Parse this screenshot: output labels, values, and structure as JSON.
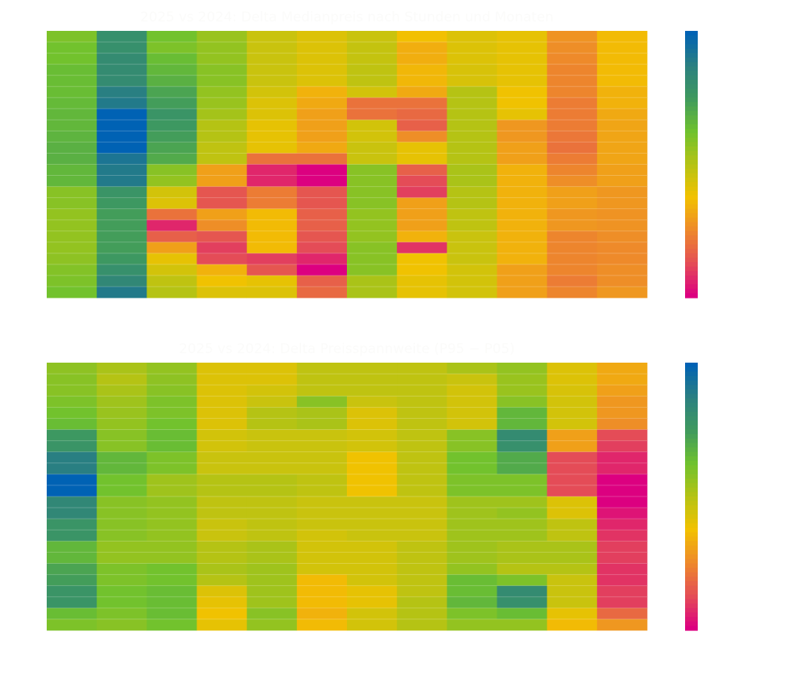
{
  "chart_data": [
    {
      "type": "heatmap",
      "title": "2025 vs 2024: Delta Medianpreis nach Stunden und Monaten",
      "xlabel": "",
      "ylabel": "",
      "n_cols": 12,
      "n_rows": 24,
      "value_scale": "normalized 0 (magenta, low) to 1 (blue, high)",
      "colorbar": {
        "range": [
          0,
          1
        ],
        "stops": [
          "#dc0080",
          "#e44f55",
          "#ee8a2a",
          "#f2c200",
          "#b5c314",
          "#6fc22e",
          "#3f9a5e",
          "#2b8080",
          "#0062b4"
        ]
      },
      "values": [
        [
          0.6,
          0.8,
          0.62,
          0.55,
          0.46,
          0.42,
          0.46,
          0.37,
          0.42,
          0.4,
          0.27,
          0.36
        ],
        [
          0.62,
          0.8,
          0.6,
          0.56,
          0.46,
          0.42,
          0.47,
          0.33,
          0.42,
          0.4,
          0.26,
          0.36
        ],
        [
          0.62,
          0.82,
          0.64,
          0.56,
          0.46,
          0.42,
          0.47,
          0.33,
          0.42,
          0.4,
          0.25,
          0.36
        ],
        [
          0.64,
          0.82,
          0.66,
          0.58,
          0.46,
          0.42,
          0.48,
          0.35,
          0.43,
          0.4,
          0.24,
          0.36
        ],
        [
          0.64,
          0.82,
          0.68,
          0.58,
          0.46,
          0.42,
          0.48,
          0.35,
          0.43,
          0.4,
          0.24,
          0.36
        ],
        [
          0.64,
          0.88,
          0.72,
          0.56,
          0.44,
          0.34,
          0.44,
          0.32,
          0.5,
          0.38,
          0.24,
          0.34
        ],
        [
          0.65,
          0.9,
          0.74,
          0.55,
          0.42,
          0.32,
          0.2,
          0.2,
          0.5,
          0.38,
          0.22,
          0.34
        ],
        [
          0.66,
          1.0,
          0.78,
          0.53,
          0.42,
          0.3,
          0.2,
          0.18,
          0.5,
          0.4,
          0.22,
          0.32
        ],
        [
          0.66,
          1.0,
          0.76,
          0.5,
          0.4,
          0.3,
          0.44,
          0.16,
          0.5,
          0.28,
          0.22,
          0.31
        ],
        [
          0.67,
          1.0,
          0.74,
          0.5,
          0.4,
          0.3,
          0.44,
          0.26,
          0.5,
          0.28,
          0.21,
          0.31
        ],
        [
          0.68,
          1.0,
          0.72,
          0.48,
          0.4,
          0.32,
          0.46,
          0.4,
          0.5,
          0.3,
          0.2,
          0.31
        ],
        [
          0.68,
          0.92,
          0.7,
          0.48,
          0.2,
          0.2,
          0.46,
          0.4,
          0.5,
          0.3,
          0.22,
          0.31
        ],
        [
          0.66,
          0.9,
          0.58,
          0.3,
          0.06,
          0.0,
          0.58,
          0.16,
          0.52,
          0.34,
          0.24,
          0.3
        ],
        [
          0.66,
          0.9,
          0.56,
          0.3,
          0.06,
          0.0,
          0.58,
          0.12,
          0.52,
          0.34,
          0.26,
          0.3
        ],
        [
          0.58,
          0.78,
          0.44,
          0.14,
          0.22,
          0.14,
          0.58,
          0.1,
          0.5,
          0.34,
          0.3,
          0.28
        ],
        [
          0.58,
          0.76,
          0.42,
          0.14,
          0.22,
          0.14,
          0.58,
          0.3,
          0.5,
          0.34,
          0.3,
          0.28
        ],
        [
          0.56,
          0.74,
          0.2,
          0.3,
          0.36,
          0.16,
          0.56,
          0.3,
          0.48,
          0.34,
          0.28,
          0.27
        ],
        [
          0.56,
          0.74,
          0.06,
          0.26,
          0.36,
          0.16,
          0.56,
          0.3,
          0.48,
          0.34,
          0.28,
          0.27
        ],
        [
          0.56,
          0.74,
          0.16,
          0.14,
          0.36,
          0.14,
          0.56,
          0.34,
          0.46,
          0.34,
          0.24,
          0.26
        ],
        [
          0.56,
          0.74,
          0.3,
          0.1,
          0.36,
          0.12,
          0.58,
          0.08,
          0.46,
          0.34,
          0.24,
          0.25
        ],
        [
          0.57,
          0.76,
          0.4,
          0.12,
          0.1,
          0.06,
          0.58,
          0.38,
          0.46,
          0.34,
          0.24,
          0.25
        ],
        [
          0.59,
          0.8,
          0.44,
          0.34,
          0.14,
          0.0,
          0.58,
          0.38,
          0.44,
          0.3,
          0.24,
          0.26
        ],
        [
          0.6,
          0.84,
          0.48,
          0.38,
          0.4,
          0.16,
          0.52,
          0.4,
          0.44,
          0.3,
          0.22,
          0.26
        ],
        [
          0.62,
          0.9,
          0.5,
          0.42,
          0.42,
          0.18,
          0.52,
          0.4,
          0.44,
          0.3,
          0.24,
          0.28
        ]
      ]
    },
    {
      "type": "heatmap",
      "title": "2025 vs 2024: Delta Preisspannweite (P95 − P05)",
      "xlabel": "",
      "ylabel": "",
      "n_cols": 12,
      "n_rows": 24,
      "value_scale": "normalized 0 (magenta, low) to 1 (blue, high)",
      "colorbar": {
        "range": [
          0,
          1
        ],
        "stops": [
          "#dc0080",
          "#e44f55",
          "#ee8a2a",
          "#f2c200",
          "#b5c314",
          "#6fc22e",
          "#3f9a5e",
          "#2b8080",
          "#0062b4"
        ]
      },
      "values": [
        [
          0.57,
          0.52,
          0.56,
          0.42,
          0.42,
          0.48,
          0.48,
          0.48,
          0.52,
          0.56,
          0.42,
          0.32
        ],
        [
          0.58,
          0.5,
          0.57,
          0.42,
          0.42,
          0.48,
          0.48,
          0.48,
          0.46,
          0.55,
          0.42,
          0.32
        ],
        [
          0.58,
          0.52,
          0.58,
          0.42,
          0.44,
          0.48,
          0.48,
          0.48,
          0.44,
          0.55,
          0.43,
          0.3
        ],
        [
          0.6,
          0.54,
          0.6,
          0.42,
          0.46,
          0.58,
          0.46,
          0.48,
          0.44,
          0.58,
          0.44,
          0.28
        ],
        [
          0.62,
          0.55,
          0.6,
          0.42,
          0.5,
          0.52,
          0.42,
          0.48,
          0.44,
          0.66,
          0.44,
          0.28
        ],
        [
          0.64,
          0.56,
          0.62,
          0.42,
          0.5,
          0.52,
          0.42,
          0.48,
          0.44,
          0.66,
          0.44,
          0.26
        ],
        [
          0.76,
          0.58,
          0.64,
          0.44,
          0.46,
          0.46,
          0.44,
          0.48,
          0.58,
          0.82,
          0.3,
          0.12
        ],
        [
          0.78,
          0.58,
          0.64,
          0.44,
          0.46,
          0.46,
          0.44,
          0.48,
          0.58,
          0.8,
          0.3,
          0.1
        ],
        [
          0.88,
          0.66,
          0.6,
          0.46,
          0.46,
          0.46,
          0.38,
          0.48,
          0.62,
          0.7,
          0.12,
          0.06
        ],
        [
          0.88,
          0.66,
          0.6,
          0.46,
          0.46,
          0.46,
          0.38,
          0.48,
          0.62,
          0.7,
          0.12,
          0.06
        ],
        [
          1.0,
          0.62,
          0.54,
          0.5,
          0.5,
          0.48,
          0.38,
          0.48,
          0.6,
          0.6,
          0.12,
          0.0
        ],
        [
          1.0,
          0.62,
          0.54,
          0.5,
          0.5,
          0.48,
          0.38,
          0.48,
          0.6,
          0.6,
          0.12,
          0.0
        ],
        [
          0.84,
          0.58,
          0.56,
          0.48,
          0.48,
          0.46,
          0.46,
          0.46,
          0.54,
          0.54,
          0.42,
          0.0
        ],
        [
          0.84,
          0.58,
          0.56,
          0.48,
          0.48,
          0.46,
          0.46,
          0.46,
          0.54,
          0.56,
          0.42,
          0.03
        ],
        [
          0.78,
          0.58,
          0.56,
          0.46,
          0.48,
          0.46,
          0.46,
          0.46,
          0.54,
          0.54,
          0.48,
          0.06
        ],
        [
          0.78,
          0.58,
          0.56,
          0.46,
          0.48,
          0.44,
          0.46,
          0.46,
          0.54,
          0.54,
          0.48,
          0.08
        ],
        [
          0.66,
          0.56,
          0.56,
          0.5,
          0.52,
          0.44,
          0.44,
          0.48,
          0.54,
          0.52,
          0.52,
          0.1
        ],
        [
          0.66,
          0.56,
          0.56,
          0.5,
          0.52,
          0.44,
          0.44,
          0.48,
          0.54,
          0.52,
          0.52,
          0.1
        ],
        [
          0.72,
          0.6,
          0.62,
          0.52,
          0.54,
          0.44,
          0.44,
          0.48,
          0.56,
          0.5,
          0.5,
          0.08
        ],
        [
          0.74,
          0.6,
          0.62,
          0.5,
          0.54,
          0.36,
          0.44,
          0.48,
          0.64,
          0.6,
          0.46,
          0.08
        ],
        [
          0.78,
          0.62,
          0.64,
          0.42,
          0.54,
          0.36,
          0.4,
          0.48,
          0.64,
          0.82,
          0.46,
          0.1
        ],
        [
          0.78,
          0.62,
          0.64,
          0.4,
          0.54,
          0.36,
          0.4,
          0.5,
          0.66,
          0.8,
          0.46,
          0.1
        ],
        [
          0.64,
          0.6,
          0.64,
          0.38,
          0.58,
          0.34,
          0.44,
          0.5,
          0.6,
          0.64,
          0.4,
          0.18
        ],
        [
          0.6,
          0.58,
          0.62,
          0.4,
          0.56,
          0.36,
          0.44,
          0.5,
          0.56,
          0.56,
          0.36,
          0.28
        ]
      ]
    }
  ]
}
